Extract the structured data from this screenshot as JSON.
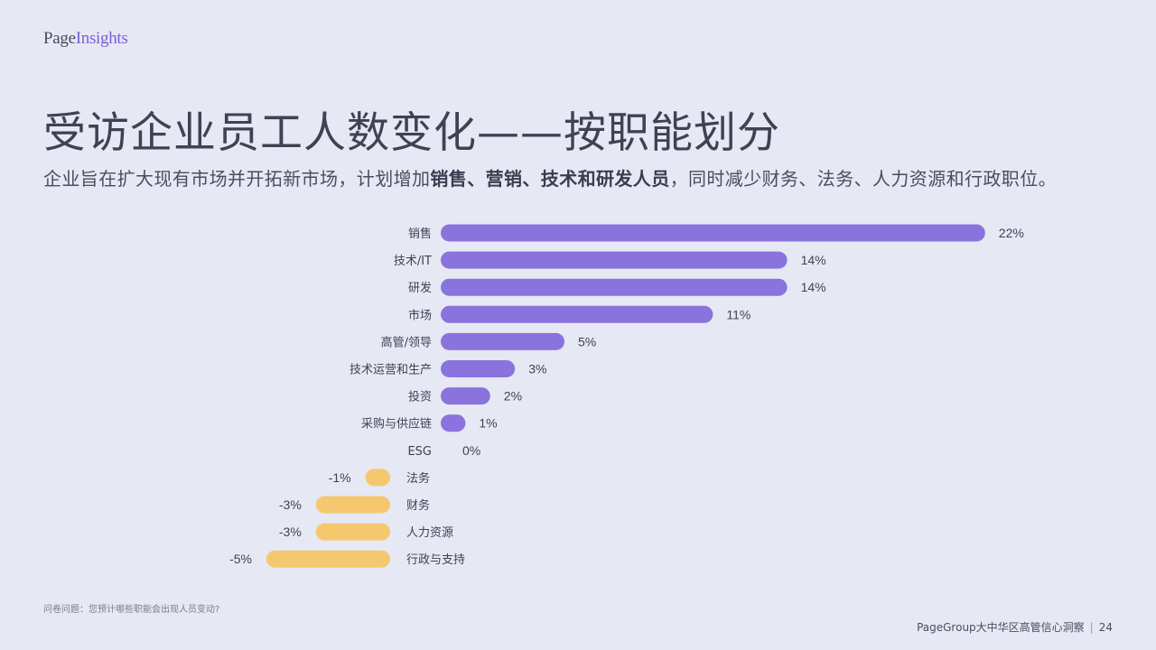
{
  "logo": {
    "part1": "Page",
    "part2": "Insights"
  },
  "title": "受访企业员工人数变化——按职能划分",
  "subtitle": {
    "pre": "企业旨在扩大现有市场并开拓新市场，计划增加",
    "bold": "销售、营销、技术和研发人员",
    "post": "，同时减少财务、法务、人力资源和行政职位。"
  },
  "footnote": "问卷问题：您预计哪些职能会出现人员变动?",
  "footer": {
    "text": "PageGroup大中华区高管信心洞察",
    "page": "24"
  },
  "colors": {
    "positive": "#8a73dc",
    "negative": "#f5c76e",
    "background": "#e6e8f4"
  },
  "chart_data": {
    "type": "bar",
    "orientation": "horizontal",
    "categories": [
      "销售",
      "技术/IT",
      "研发",
      "市场",
      "高管/领导",
      "技术运营和生产",
      "投资",
      "采购与供应链",
      "ESG",
      "法务",
      "财务",
      "人力资源",
      "行政与支持"
    ],
    "values": [
      22,
      14,
      14,
      11,
      5,
      3,
      2,
      1,
      0,
      -1,
      -3,
      -3,
      -5
    ],
    "value_labels": [
      "22%",
      "14%",
      "14%",
      "11%",
      "5%",
      "3%",
      "2%",
      "1%",
      "0%",
      "-1%",
      "-3%",
      "-3%",
      "-5%"
    ],
    "unit": "%",
    "grid": false,
    "legend": "none"
  }
}
